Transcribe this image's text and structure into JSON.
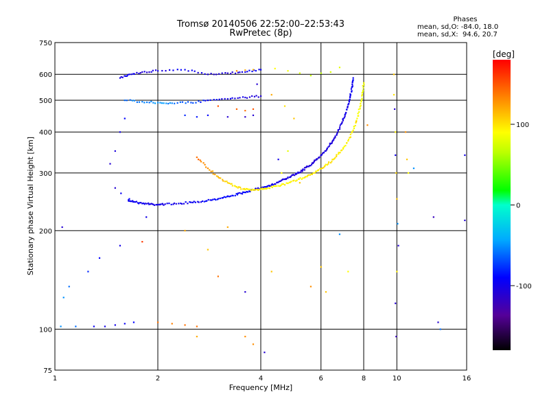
{
  "header": {
    "title": "Tromsø 20140506 22:52:00–22:53:43",
    "subtitle": "RwPretec (8p)"
  },
  "stats": {
    "heading": "Phases",
    "line_o": "mean, sd,O: -84.0, 18.0",
    "line_x": "mean, sd,X:  94.6, 20.7"
  },
  "colorbar": {
    "label": "[deg]",
    "range": [
      -180,
      180
    ],
    "ticks": [
      {
        "value": 100,
        "label": "100"
      },
      {
        "value": 0,
        "label": "0"
      },
      {
        "value": -100,
        "label": "-100"
      }
    ]
  },
  "chart_data": {
    "type": "scatter",
    "xlabel": "Frequency [MHz]",
    "ylabel": "Stationary phase Virtual Height [km]",
    "xscale": "log",
    "yscale": "log",
    "xlim": [
      1,
      16
    ],
    "ylim": [
      75,
      750
    ],
    "x_ticks": [
      {
        "value": 1,
        "label": "1"
      },
      {
        "value": 2,
        "label": "2"
      },
      {
        "value": 4,
        "label": "4"
      },
      {
        "value": 6,
        "label": "6"
      },
      {
        "value": 8,
        "label": "8"
      },
      {
        "value": 10,
        "label": "10"
      },
      {
        "value": 16,
        "label": "16"
      }
    ],
    "y_ticks": [
      {
        "value": 75,
        "label": "75"
      },
      {
        "value": 100,
        "label": "100"
      },
      {
        "value": 200,
        "label": "200"
      },
      {
        "value": 300,
        "label": "300"
      },
      {
        "value": 400,
        "label": "400"
      },
      {
        "value": 500,
        "label": "500"
      },
      {
        "value": 600,
        "label": "600"
      },
      {
        "value": 750,
        "label": "750"
      }
    ],
    "grid": true,
    "color_dimension": "phase",
    "series": [
      {
        "values": [
          [
            1.64,
            248,
            -95
          ],
          [
            1.7,
            245,
            -98
          ],
          [
            1.8,
            242,
            -100
          ],
          [
            1.9,
            241,
            -102
          ],
          [
            2.0,
            240,
            -101
          ],
          [
            2.1,
            241,
            -100
          ],
          [
            2.3,
            242,
            -98
          ],
          [
            2.5,
            244,
            -96
          ],
          [
            2.7,
            246,
            -94
          ],
          [
            2.9,
            249,
            -92
          ],
          [
            3.1,
            252,
            -90
          ],
          [
            3.3,
            256,
            -90
          ],
          [
            3.5,
            260,
            -92
          ],
          [
            3.7,
            264,
            -94
          ],
          [
            3.9,
            268,
            -96
          ],
          [
            4.1,
            272,
            -98
          ],
          [
            4.3,
            276,
            -100
          ],
          [
            4.5,
            281,
            -102
          ],
          [
            4.7,
            287,
            -103
          ],
          [
            4.9,
            293,
            -104
          ],
          [
            5.1,
            299,
            -105
          ],
          [
            5.3,
            306,
            -106
          ],
          [
            5.5,
            314,
            -106
          ],
          [
            5.7,
            323,
            -107
          ],
          [
            5.9,
            334,
            -107
          ],
          [
            6.1,
            346,
            -107
          ],
          [
            6.3,
            360,
            -106
          ],
          [
            6.5,
            377,
            -105
          ],
          [
            6.7,
            398,
            -104
          ],
          [
            6.9,
            425,
            -102
          ],
          [
            7.05,
            452,
            -100
          ],
          [
            7.2,
            485,
            -98
          ],
          [
            7.3,
            515,
            -96
          ],
          [
            7.4,
            550,
            -95
          ],
          [
            7.45,
            585,
            -94
          ]
        ]
      },
      {
        "values": [
          [
            2.6,
            335,
            140
          ],
          [
            2.8,
            310,
            130
          ],
          [
            3.0,
            292,
            115
          ],
          [
            3.2,
            280,
            105
          ],
          [
            3.4,
            272,
            100
          ],
          [
            3.6,
            267,
            98
          ],
          [
            3.8,
            266,
            96
          ],
          [
            4.0,
            268,
            94
          ],
          [
            4.2,
            270,
            92
          ],
          [
            4.5,
            274,
            90
          ],
          [
            4.8,
            279,
            92
          ],
          [
            5.1,
            285,
            94
          ],
          [
            5.4,
            292,
            96
          ],
          [
            5.7,
            300,
            98
          ],
          [
            6.0,
            309,
            100
          ],
          [
            6.3,
            320,
            100
          ],
          [
            6.6,
            334,
            98
          ],
          [
            6.9,
            352,
            96
          ],
          [
            7.2,
            376,
            94
          ],
          [
            7.45,
            405,
            92
          ],
          [
            7.65,
            440,
            90
          ],
          [
            7.8,
            478,
            88
          ],
          [
            7.92,
            520,
            86
          ],
          [
            8.0,
            565,
            85
          ]
        ]
      },
      {
        "values": [
          [
            1.6,
            500,
            -60
          ],
          [
            1.8,
            495,
            -55
          ],
          [
            2.0,
            492,
            -50
          ],
          [
            2.2,
            490,
            -55
          ],
          [
            2.5,
            492,
            -70
          ],
          [
            2.8,
            500,
            -90
          ],
          [
            3.2,
            505,
            -100
          ],
          [
            3.6,
            510,
            -105
          ],
          [
            4.0,
            515,
            -108
          ]
        ]
      },
      {
        "values": [
          [
            1.55,
            585,
            -100
          ],
          [
            1.65,
            600,
            -95
          ],
          [
            1.8,
            610,
            -110
          ],
          [
            2.0,
            615,
            -100
          ],
          [
            2.4,
            620,
            -95
          ],
          [
            2.8,
            600,
            -105
          ],
          [
            3.2,
            605,
            -110
          ],
          [
            3.6,
            610,
            -100
          ],
          [
            4.0,
            620,
            -95
          ]
        ]
      },
      {
        "values": [
          [
            3.4,
            615,
            130
          ],
          [
            3.6,
            618,
            120
          ],
          [
            3.8,
            620,
            115
          ],
          [
            4.4,
            625,
            90
          ],
          [
            4.8,
            615,
            85
          ],
          [
            5.2,
            605,
            75
          ],
          [
            5.6,
            595,
            70
          ],
          [
            6.0,
            605,
            65
          ],
          [
            6.4,
            610,
            75
          ],
          [
            6.8,
            630,
            80
          ]
        ]
      },
      {
        "values": [
          [
            2.4,
            450,
            -80
          ],
          [
            2.6,
            445,
            -85
          ],
          [
            2.8,
            450,
            -90
          ],
          [
            3.2,
            445,
            -110
          ],
          [
            3.6,
            445,
            -115
          ],
          [
            3.8,
            450,
            -110
          ]
        ]
      },
      {
        "values": [
          [
            3.0,
            480,
            150
          ],
          [
            3.4,
            470,
            145
          ],
          [
            3.6,
            465,
            140
          ],
          [
            3.8,
            470,
            150
          ]
        ]
      },
      {
        "values": [
          [
            1.04,
            102,
            -50
          ],
          [
            1.15,
            102,
            -60
          ],
          [
            1.3,
            102,
            -95
          ],
          [
            1.4,
            102,
            -100
          ],
          [
            1.5,
            103,
            -100
          ],
          [
            1.6,
            104,
            -95
          ],
          [
            1.7,
            105,
            -90
          ]
        ]
      },
      {
        "values": [
          [
            2.0,
            105,
            140
          ],
          [
            2.2,
            104,
            135
          ],
          [
            2.4,
            103,
            140
          ],
          [
            2.6,
            102,
            140
          ]
        ]
      },
      {
        "values": [
          [
            1.06,
            125,
            -50
          ],
          [
            1.1,
            135,
            -60
          ],
          [
            1.25,
            150,
            -80
          ],
          [
            1.35,
            165,
            -90
          ],
          [
            1.55,
            180,
            -100
          ],
          [
            1.85,
            220,
            -100
          ],
          [
            1.05,
            205,
            -110
          ]
        ]
      },
      {
        "values": [
          [
            1.45,
            320,
            -110
          ],
          [
            1.5,
            350,
            -105
          ],
          [
            1.55,
            400,
            -100
          ],
          [
            1.6,
            440,
            -90
          ],
          [
            1.5,
            270,
            -110
          ],
          [
            1.56,
            260,
            -95
          ],
          [
            1.65,
            250,
            -90
          ]
        ]
      },
      {
        "values": [
          [
            9.8,
            600,
            110
          ],
          [
            9.8,
            520,
            100
          ],
          [
            9.85,
            470,
            -110
          ],
          [
            9.9,
            400,
            95
          ],
          [
            9.9,
            340,
            -100
          ],
          [
            9.95,
            300,
            105
          ],
          [
            10.0,
            250,
            110
          ],
          [
            10.05,
            210,
            -50
          ],
          [
            10.1,
            180,
            -110
          ],
          [
            10.0,
            150,
            95
          ],
          [
            9.9,
            120,
            -110
          ],
          [
            9.95,
            95,
            -120
          ],
          [
            10.6,
            400,
            130
          ],
          [
            10.7,
            330,
            110
          ],
          [
            10.8,
            300,
            90
          ],
          [
            11.2,
            310,
            -50
          ],
          [
            12.8,
            220,
            -120
          ],
          [
            13.2,
            105,
            -110
          ],
          [
            13.4,
            100,
            -60
          ],
          [
            15.8,
            215,
            -110
          ],
          [
            15.8,
            340,
            -100
          ]
        ]
      },
      {
        "values": [
          [
            1.8,
            185,
            160
          ],
          [
            2.4,
            200,
            120
          ],
          [
            2.6,
            95,
            120
          ],
          [
            2.8,
            175,
            110
          ],
          [
            3.0,
            145,
            140
          ],
          [
            3.2,
            205,
            120
          ],
          [
            3.6,
            130,
            -110
          ],
          [
            3.8,
            90,
            130
          ],
          [
            4.1,
            85,
            -110
          ],
          [
            4.3,
            150,
            110
          ],
          [
            4.5,
            330,
            -100
          ],
          [
            4.6,
            300,
            90
          ],
          [
            4.8,
            350,
            80
          ],
          [
            5.2,
            280,
            110
          ],
          [
            5.6,
            135,
            130
          ],
          [
            6.0,
            155,
            110
          ],
          [
            6.2,
            130,
            110
          ],
          [
            6.8,
            195,
            -50
          ],
          [
            7.2,
            150,
            90
          ],
          [
            3.9,
            560,
            -110
          ],
          [
            4.3,
            520,
            120
          ],
          [
            4.7,
            480,
            100
          ],
          [
            5.0,
            440,
            110
          ],
          [
            7.6,
            430,
            110
          ],
          [
            8.2,
            420,
            130
          ],
          [
            3.6,
            95,
            130
          ]
        ]
      }
    ]
  }
}
